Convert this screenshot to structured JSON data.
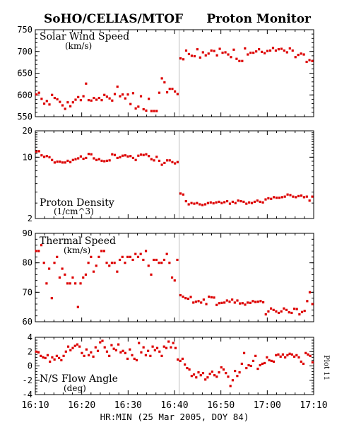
{
  "header": {
    "left_title": "SoHO/CELIAS/MTOF",
    "right_title": "Proton Monitor"
  },
  "colors": {
    "data_points": "#dd0000",
    "axes": "#000000",
    "event_line": "#bbbbbb"
  },
  "x_axis": {
    "label": "HR:MIN (25 Mar 2005, DOY 84)",
    "ticks": [
      "16:10",
      "16:20",
      "16:30",
      "16:40",
      "16:50",
      "17:00",
      "17:10"
    ],
    "range_minutes": [
      0,
      60
    ],
    "event_time": "16:41"
  },
  "side_label": "Plot 11",
  "chart_data": [
    {
      "type": "scatter",
      "id": "speed",
      "title": "Solar Wind Speed",
      "units": "(km/s)",
      "scale": "linear",
      "ylim": [
        550,
        750
      ],
      "yticks": [
        550,
        600,
        650,
        700,
        750
      ],
      "x_start": "16:10",
      "x_step_minutes": 0.5,
      "y": [
        601,
        605,
        591,
        580,
        586,
        578,
        600,
        593,
        590,
        584,
        576,
        568,
        583,
        574,
        583,
        589,
        595,
        588,
        597,
        626,
        588,
        587,
        593,
        589,
        593,
        588,
        600,
        596,
        592,
        587,
        602,
        619,
        597,
        601,
        592,
        601,
        579,
        604,
        569,
        573,
        597,
        567,
        564,
        591,
        563,
        563,
        563,
        605,
        638,
        629,
        606,
        614,
        614,
        608,
        602,
        684,
        682,
        702,
        694,
        690,
        689,
        705,
        686,
        698,
        691,
        695,
        702,
        701,
        691,
        706,
        697,
        698,
        693,
        687,
        704,
        683,
        678,
        678,
        707,
        693,
        697,
        697,
        700,
        705,
        699,
        696,
        701,
        702,
        708,
        702,
        705,
        706,
        702,
        698,
        707,
        702,
        687,
        692,
        695,
        693,
        676,
        680,
        678
      ],
      "gap_after_index": 54
    },
    {
      "type": "scatter",
      "id": "density",
      "title": "Proton Density",
      "units": "(1/cm^3)",
      "scale": "log",
      "ylim": [
        2,
        20
      ],
      "yticks": [
        2,
        10,
        20
      ],
      "x_start": "16:10",
      "x_step_minutes": 0.5,
      "y": [
        11.6,
        11.7,
        10.5,
        10.1,
        10.3,
        10.0,
        9.3,
        8.7,
        8.9,
        8.9,
        8.7,
        8.7,
        9.1,
        8.8,
        9.3,
        9.5,
        9.7,
        10.2,
        9.6,
        9.8,
        10.9,
        10.8,
        9.7,
        9.3,
        9.5,
        9.1,
        9.0,
        9.1,
        9.2,
        10.8,
        10.6,
        9.8,
        10.0,
        10.4,
        10.5,
        10.2,
        10.3,
        9.8,
        9.3,
        10.4,
        10.7,
        10.6,
        10.8,
        10.3,
        9.5,
        9.2,
        10.1,
        9.1,
        8.2,
        8.6,
        9.2,
        9.2,
        8.8,
        8.5,
        8.8,
        3.85,
        3.75,
        3.15,
        2.9,
        3.0,
        2.95,
        3.0,
        2.9,
        2.85,
        2.9,
        3.0,
        3.05,
        2.98,
        3.05,
        3.1,
        3.0,
        3.07,
        3.15,
        2.95,
        3.1,
        3.0,
        3.2,
        3.15,
        3.1,
        2.95,
        3.05,
        3.0,
        3.1,
        3.2,
        3.1,
        3.05,
        3.3,
        3.4,
        3.35,
        3.5,
        3.45,
        3.45,
        3.5,
        3.55,
        3.75,
        3.7,
        3.55,
        3.5,
        3.6,
        3.65,
        3.5,
        3.55,
        3.2,
        3.55
      ],
      "gap_after_index": 54
    },
    {
      "type": "scatter",
      "id": "thermal",
      "title": "Thermal Speed",
      "units": "(km/s)",
      "scale": "linear",
      "ylim": [
        60,
        90
      ],
      "yticks": [
        60,
        70,
        80,
        90
      ],
      "x_start": "16:10",
      "x_step_minutes": 0.5,
      "y": [
        84,
        84,
        86,
        80,
        73,
        78,
        68,
        80,
        82,
        75,
        78,
        76,
        73,
        73,
        75,
        73,
        65,
        73,
        75,
        76,
        80,
        82,
        77,
        79,
        82,
        84,
        84,
        80,
        79,
        80,
        80,
        77,
        81,
        82,
        80,
        82,
        82,
        81,
        83,
        82,
        83,
        81,
        84,
        79,
        76,
        81,
        81,
        80,
        80,
        81,
        83,
        80,
        75,
        74,
        81,
        81,
        79,
        79,
        84,
        85,
        83,
        78,
        75,
        68,
        79,
        81,
        81,
        79,
        80,
        77,
        72,
        78,
        77,
        79,
        78,
        81,
        79,
        83,
        80,
        79,
        78,
        78
      ],
      "y_points_after_event": [
        69,
        68.5,
        68,
        67.8,
        68.4,
        66.5,
        66.8,
        67,
        66.5,
        67.5,
        66,
        68.5,
        68.3,
        68.2,
        65.7,
        66.3,
        66.4,
        66.5,
        67.2,
        66.8,
        67.5,
        66.5,
        67.2,
        66.2,
        66.3,
        65.8,
        66.5,
        66.4,
        67,
        66.7,
        66.8,
        67,
        66.6,
        62.5,
        63.5,
        64.5,
        64,
        63.5,
        63,
        63.5,
        64.5,
        64,
        63.2,
        63,
        64.4,
        64.3,
        62.5,
        63.3,
        63.7,
        67,
        70,
        66
      ],
      "gap_after_index": 54
    },
    {
      "type": "scatter",
      "id": "flow_angle",
      "title": "N/S Flow Angle",
      "units": "(deg)",
      "scale": "linear",
      "ylim": [
        -4,
        4
      ],
      "yticks": [
        -4,
        -2,
        0,
        2,
        4
      ],
      "x_start": "16:10",
      "x_step_minutes": 0.5,
      "y": [
        2.0,
        1.9,
        1.4,
        1.2,
        1.1,
        1.5,
        0.6,
        1.2,
        0.9,
        1.4,
        1.1,
        0.8,
        1.4,
        2.0,
        2.7,
        2.2,
        2.5,
        2.8,
        3.0,
        2.7,
        1.8,
        1.4,
        2.3,
        1.5,
        1.9,
        1.3,
        2.6,
        2.1,
        3.3,
        3.5,
        2.6,
        2.0,
        1.4,
        2.9,
        2.4,
        2.2,
        3.0,
        1.9,
        2.1,
        1.8,
        1.0,
        2.3,
        1.5,
        1.0,
        0.8,
        3.2,
        1.9,
        2.6,
        1.5,
        2.1,
        1.4,
        2.7,
        2.2,
        2.5,
        2.0,
        1.4,
        2.7,
        2.5,
        3.4,
        2.6,
        3.2,
        2.5,
        0.9,
        0.7,
        1.0,
        0.2,
        -0.3,
        -0.5,
        -1.4,
        -1.2,
        -1.6,
        -0.9,
        -1.3,
        -1.0,
        -1.9,
        -1.6,
        -1.1,
        -0.8,
        -1.3,
        -1.5,
        -0.9,
        -0.2,
        -0.5,
        -1.0,
        -1.5,
        -2.8,
        -2.0,
        -0.7,
        -1.4,
        -0.9,
        0.3,
        1.8,
        -0.3,
        0.1,
        0.0,
        0.7,
        1.4,
        -0.4,
        0.1,
        0.3,
        0.4,
        1.2,
        0.8,
        0.7,
        0.6,
        1.5,
        1.6,
        1.3,
        1.6,
        1.2,
        1.5,
        1.7,
        1.6,
        1.3,
        1.5,
        1.2,
        0.6,
        0.3,
        1.8,
        1.6,
        1.4,
        0.5
      ],
      "gap_after_index": 62
    }
  ]
}
